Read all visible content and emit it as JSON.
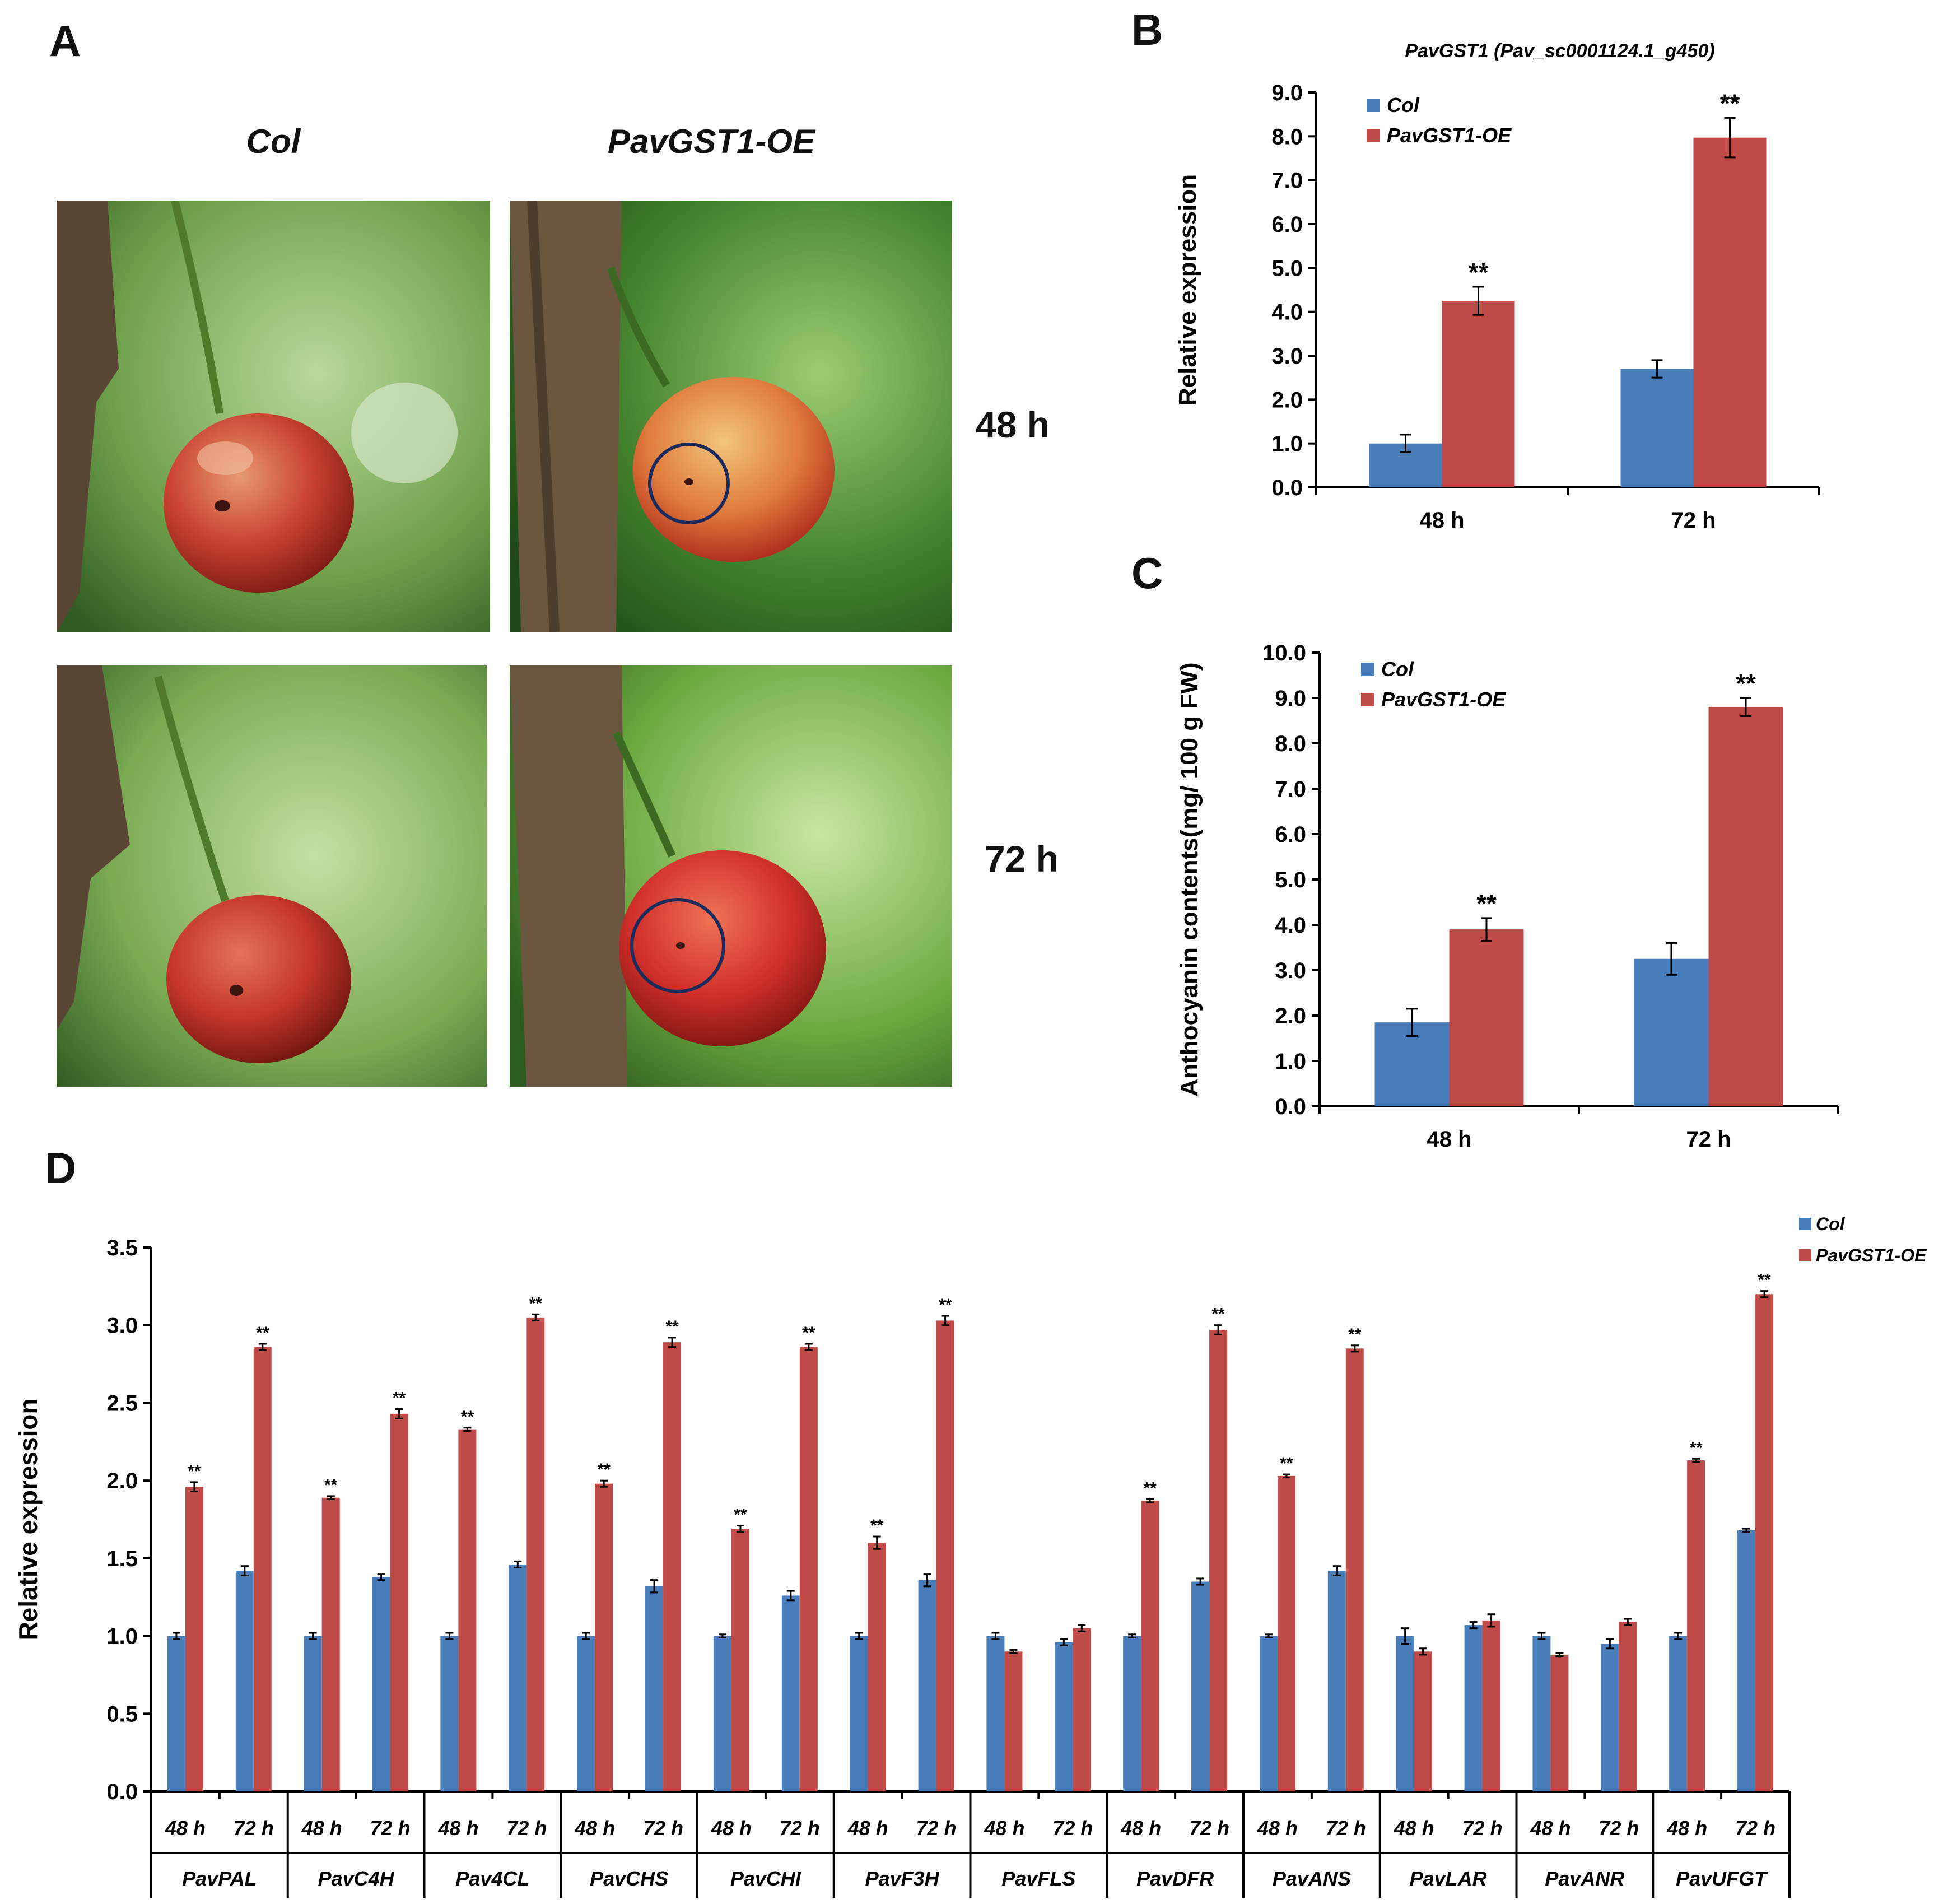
{
  "panel_a": {
    "letter": "A",
    "col_label": "Col",
    "oe_label": "PavGST1-OE",
    "time_48": "48 h",
    "time_72": "72 h"
  },
  "panel_b": {
    "letter": "B"
  },
  "panel_c": {
    "letter": "C"
  },
  "panel_d": {
    "letter": "D"
  },
  "colors": {
    "col": "#4a7ebb",
    "oe": "#be4b48"
  },
  "chart_data": [
    {
      "id": "B",
      "type": "bar",
      "title": "PavGST1 (Pav_sc0001124.1_g450)",
      "xlabel": "",
      "ylabel": "Relative  expression",
      "categories": [
        "48 h",
        "72 h"
      ],
      "ylim": [
        0,
        9
      ],
      "yticks": [
        "0.0",
        "1.0",
        "2.0",
        "3.0",
        "4.0",
        "5.0",
        "6.0",
        "7.0",
        "8.0",
        "9.0"
      ],
      "legend": "top-left",
      "series": [
        {
          "name": "Col",
          "values": [
            1.0,
            2.7
          ],
          "errors": [
            0.2,
            0.2
          ],
          "marks": [
            "",
            ""
          ]
        },
        {
          "name": "PavGST1-OE",
          "values": [
            4.25,
            7.97
          ],
          "errors": [
            0.32,
            0.45
          ],
          "marks": [
            "**",
            "**"
          ]
        }
      ]
    },
    {
      "id": "C",
      "type": "bar",
      "title": "",
      "xlabel": "",
      "ylabel": "Anthocyanin contents(mg/ 100 g FW)",
      "categories": [
        "48 h",
        "72 h"
      ],
      "ylim": [
        0,
        10
      ],
      "yticks": [
        "0.0",
        "1.0",
        "2.0",
        "3.0",
        "4.0",
        "5.0",
        "6.0",
        "7.0",
        "8.0",
        "9.0",
        "10.0"
      ],
      "legend": "top-left",
      "series": [
        {
          "name": "Col",
          "values": [
            1.85,
            3.25
          ],
          "errors": [
            0.3,
            0.35
          ],
          "marks": [
            "",
            ""
          ]
        },
        {
          "name": "PavGST1-OE",
          "values": [
            3.9,
            8.8
          ],
          "errors": [
            0.25,
            0.2
          ],
          "marks": [
            "**",
            "**"
          ]
        }
      ]
    },
    {
      "id": "D",
      "type": "bar",
      "title": "",
      "xlabel": "",
      "ylabel": "Relative  expression",
      "genes": [
        "PavPAL",
        "PavC4H",
        "Pav4CL",
        "PavCHS",
        "PavCHI",
        "PavF3H",
        "PavFLS",
        "PavDFR",
        "PavANS",
        "PavLAR",
        "PavANR",
        "PavUFGT"
      ],
      "times": [
        "48 h",
        "72 h"
      ],
      "ylim": [
        0,
        3.5
      ],
      "yticks": [
        "0.0",
        "0.5",
        "1.0",
        "1.5",
        "2.0",
        "2.5",
        "3.0",
        "3.5"
      ],
      "legend": "top-right",
      "series": [
        {
          "name": "Col",
          "values": [
            1.0,
            1.42,
            1.0,
            1.38,
            1.0,
            1.46,
            1.0,
            1.32,
            1.0,
            1.26,
            1.0,
            1.36,
            1.0,
            0.96,
            1.0,
            1.35,
            1.0,
            1.42,
            1.0,
            1.07,
            1.0,
            0.95,
            1.0,
            1.68
          ],
          "errors": [
            0.02,
            0.03,
            0.02,
            0.02,
            0.02,
            0.02,
            0.02,
            0.04,
            0.01,
            0.03,
            0.02,
            0.04,
            0.02,
            0.02,
            0.01,
            0.02,
            0.01,
            0.03,
            0.05,
            0.02,
            0.02,
            0.03,
            0.02,
            0.01
          ],
          "marks": [
            "",
            "",
            "",
            "",
            "",
            "",
            "",
            "",
            "",
            "",
            "",
            "",
            "",
            "",
            "",
            "",
            "",
            "",
            "",
            "",
            "",
            "",
            "",
            ""
          ]
        },
        {
          "name": "PavGST1-OE",
          "values": [
            1.96,
            2.86,
            1.89,
            2.43,
            2.33,
            3.05,
            1.98,
            2.89,
            1.69,
            2.86,
            1.6,
            3.03,
            0.9,
            1.05,
            1.87,
            2.97,
            2.03,
            2.85,
            0.9,
            1.1,
            0.88,
            1.09,
            2.13,
            3.2
          ],
          "errors": [
            0.03,
            0.02,
            0.01,
            0.03,
            0.01,
            0.02,
            0.02,
            0.03,
            0.02,
            0.02,
            0.04,
            0.03,
            0.01,
            0.02,
            0.01,
            0.03,
            0.01,
            0.02,
            0.02,
            0.04,
            0.01,
            0.02,
            0.01,
            0.02
          ],
          "marks": [
            "**",
            "**",
            "**",
            "**",
            "**",
            "**",
            "**",
            "**",
            "**",
            "**",
            "**",
            "**",
            "",
            "",
            "**",
            "**",
            "**",
            "**",
            "",
            "",
            "",
            "",
            "**",
            "**"
          ]
        }
      ]
    }
  ]
}
